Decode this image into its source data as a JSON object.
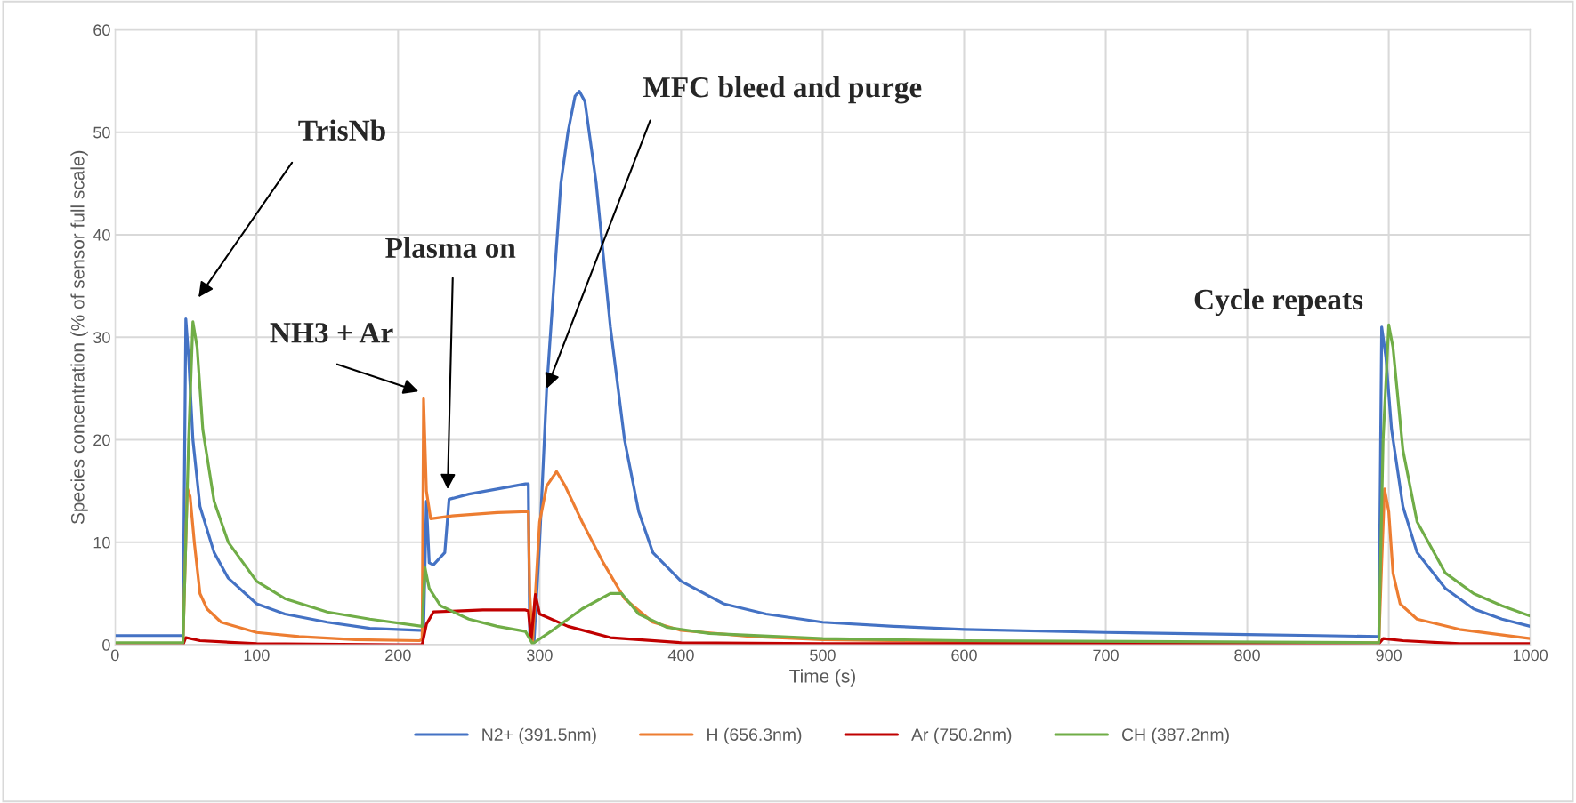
{
  "chart_data": {
    "type": "line",
    "xlabel": "Time (s)",
    "ylabel": "Species concentration (% of sensor full scale)",
    "xlim": [
      0,
      1000
    ],
    "xticks": [
      0,
      100,
      200,
      300,
      400,
      500,
      600,
      700,
      800,
      900,
      1000
    ],
    "ylim": [
      0,
      60
    ],
    "yticks": [
      0,
      10,
      20,
      30,
      40,
      50,
      60
    ],
    "grid": true,
    "legend": "bottom",
    "series": [
      {
        "name": "N2+ (391.5nm)",
        "color": "#4472c4",
        "x": [
          0,
          48,
          50,
          52,
          55,
          60,
          70,
          80,
          100,
          120,
          150,
          180,
          215,
          218,
          220,
          222,
          225,
          233,
          236,
          250,
          270,
          290,
          292,
          293,
          296,
          300,
          305,
          310,
          315,
          320,
          325,
          328,
          332,
          340,
          350,
          360,
          370,
          380,
          400,
          430,
          460,
          500,
          550,
          600,
          700,
          800,
          850,
          893,
          895,
          898,
          902,
          910,
          920,
          940,
          960,
          980,
          1000
        ],
        "values": [
          0.9,
          0.9,
          31.8,
          28,
          20,
          13.5,
          9,
          6.5,
          4,
          3,
          2.2,
          1.6,
          1.4,
          1.4,
          14,
          8,
          7.8,
          9,
          14.2,
          14.7,
          15.2,
          15.7,
          15.7,
          1,
          0.2,
          10,
          25,
          35,
          45,
          50,
          53.5,
          54,
          53,
          45,
          31,
          20,
          13,
          9,
          6.2,
          4,
          3,
          2.2,
          1.8,
          1.5,
          1.2,
          1,
          0.9,
          0.8,
          31,
          28,
          21,
          13.5,
          9,
          5.5,
          3.5,
          2.5,
          1.8
        ]
      },
      {
        "name": "H (656.3nm)",
        "color": "#ed7d31",
        "x": [
          0,
          48,
          51,
          53,
          56,
          60,
          65,
          75,
          100,
          130,
          170,
          215,
          217,
          218,
          220,
          223,
          240,
          270,
          292,
          293,
          295,
          300,
          305,
          312,
          318,
          330,
          345,
          360,
          380,
          400,
          450,
          500,
          600,
          800,
          893,
          895,
          897,
          900,
          903,
          908,
          920,
          950,
          1000
        ],
        "values": [
          0.1,
          0.1,
          15.3,
          14.5,
          10,
          5,
          3.5,
          2.2,
          1.2,
          0.8,
          0.5,
          0.4,
          0.5,
          24,
          15,
          12.3,
          12.6,
          12.9,
          13,
          5,
          0.2,
          12,
          15.5,
          16.9,
          15.5,
          12,
          8,
          4.5,
          2.2,
          1.4,
          0.8,
          0.5,
          0.3,
          0.2,
          0.2,
          8,
          15.2,
          13,
          7,
          4,
          2.5,
          1.5,
          0.6
        ]
      },
      {
        "name": "Ar (750.2nm)",
        "color": "#c00000",
        "x": [
          0,
          48,
          50,
          60,
          100,
          200,
          217,
          220,
          225,
          260,
          290,
          292,
          294,
          297,
          300,
          320,
          350,
          400,
          500,
          893,
          896,
          910,
          950,
          1000
        ],
        "values": [
          0,
          0,
          0.7,
          0.4,
          0.1,
          0,
          0,
          2,
          3.2,
          3.4,
          3.4,
          3.3,
          0.5,
          4.9,
          3,
          1.8,
          0.7,
          0.2,
          0.1,
          0.1,
          0.6,
          0.4,
          0.1,
          0.1
        ]
      },
      {
        "name": "CH (387.2nm)",
        "color": "#70ad47",
        "x": [
          0,
          48,
          52,
          55,
          58,
          62,
          70,
          80,
          100,
          120,
          150,
          180,
          217,
          219,
          222,
          230,
          250,
          270,
          290,
          295,
          310,
          330,
          350,
          358,
          370,
          390,
          420,
          500,
          600,
          893,
          896,
          900,
          903,
          910,
          920,
          940,
          960,
          980,
          1000
        ],
        "values": [
          0.2,
          0.2,
          20,
          31.5,
          29,
          21,
          14,
          10,
          6.2,
          4.5,
          3.2,
          2.5,
          1.8,
          7.5,
          5.5,
          3.8,
          2.5,
          1.8,
          1.3,
          0.1,
          1.5,
          3.5,
          5,
          5,
          3,
          1.7,
          1.1,
          0.6,
          0.4,
          0.2,
          20,
          31.2,
          29,
          19,
          12,
          7,
          5,
          3.8,
          2.8
        ]
      }
    ],
    "annotations": [
      "TrisNb",
      "NH3 + Ar",
      "Plasma on",
      {
        "text": "MFC bleed and purge",
        "x": 305,
        "y": 25
      },
      "Cycle repeats"
    ]
  }
}
